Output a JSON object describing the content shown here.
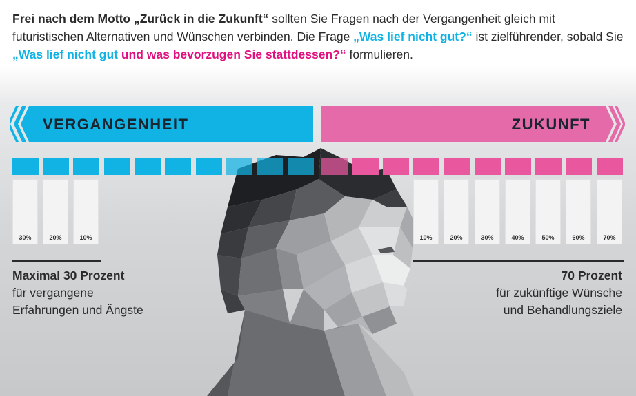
{
  "intro": {
    "bold_start": "Frei nach dem Motto „Zurück in die Zukunft“",
    "text1": " sollten Sie Fragen nach der Vergangenheit gleich mit futuristischen Alternativen und Wünschen verbinden. Die Frage ",
    "q1": "„Was lief nicht gut?“",
    "text2": " ist zielführender, sobald Sie ",
    "q2_cyan": "„Was lief nicht gut",
    "q2_magenta": " und was bevorzugen Sie stattdessen?“",
    "text3": " formulieren."
  },
  "banners": {
    "past_label": "VERGANGENHEIT",
    "future_label": "ZUKUNFT",
    "past_color": "#10b3e4",
    "future_color": "#e56aa9"
  },
  "past_bars": [
    "30%",
    "20%",
    "10%"
  ],
  "future_bars": [
    "10%",
    "20%",
    "30%",
    "40%",
    "50%",
    "60%",
    "70%"
  ],
  "captions": {
    "left_title": "Maximal 30 Prozent",
    "left_line1": "für vergangene",
    "left_line2": "Erfahrungen und Ängste",
    "right_title": "70 Prozent",
    "right_line1": "für zukünftige Wünsche",
    "right_line2": "und Behandlungsziele"
  }
}
